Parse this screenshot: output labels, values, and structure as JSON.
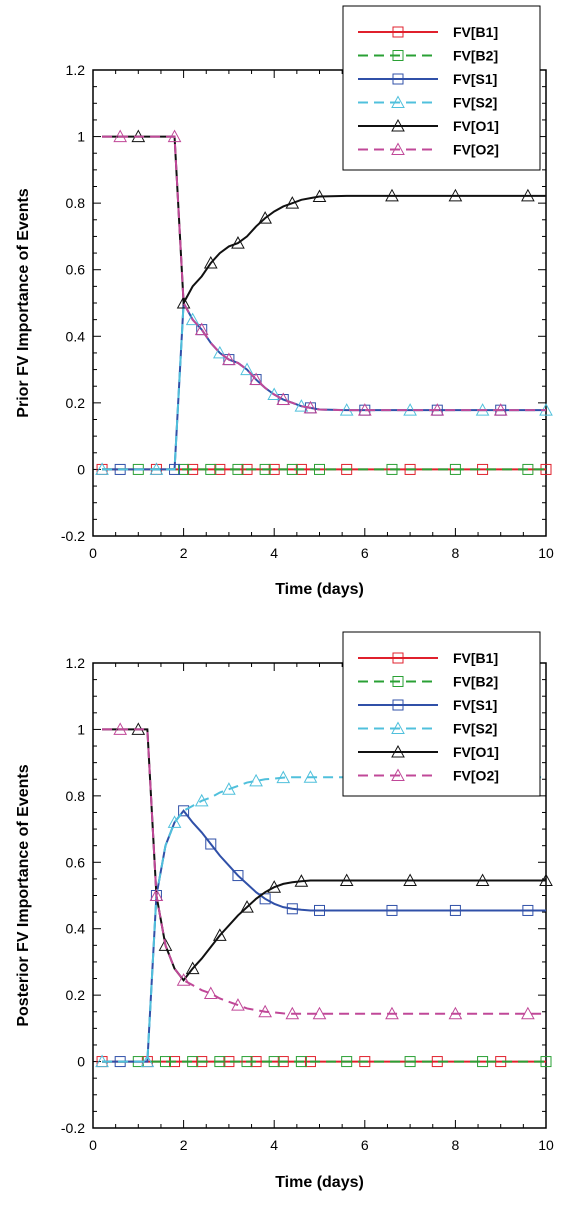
{
  "chart_data": [
    {
      "type": "line",
      "title": "",
      "xlabel": "Time (days)",
      "ylabel": "Prior FV Importance of Events",
      "xlim": [
        0,
        10
      ],
      "ylim": [
        -0.2,
        1.2
      ],
      "xticks": [
        "0",
        "2",
        "4",
        "6",
        "8",
        "10"
      ],
      "yticks": [
        "-0.2",
        "0",
        "0.2",
        "0.4",
        "0.6",
        "0.8",
        "1",
        "1.2"
      ],
      "grid": false,
      "legend_position": "top-right",
      "x": [
        0.2,
        0.6,
        1.0,
        1.4,
        1.8,
        2.0,
        2.2,
        2.4,
        2.6,
        2.8,
        3.0,
        3.2,
        3.4,
        3.6,
        3.8,
        4.0,
        4.2,
        4.4,
        4.6,
        4.8,
        5.0,
        5.6,
        6.0,
        6.6,
        7.0,
        7.6,
        8.0,
        8.6,
        9.0,
        9.6,
        10.0
      ],
      "series": [
        {
          "name": "FV[B1]",
          "color": "#e0202c",
          "dash": "solid",
          "marker": "square",
          "values": [
            0,
            0,
            0,
            0,
            0,
            0,
            0,
            0,
            0,
            0,
            0,
            0,
            0,
            0,
            0,
            0,
            0,
            0,
            0,
            0,
            0,
            0,
            0,
            0,
            0,
            0,
            0,
            0,
            0,
            0,
            0
          ]
        },
        {
          "name": "FV[B2]",
          "color": "#2aa034",
          "dash": "dashed",
          "marker": "square",
          "values": [
            0,
            0,
            0,
            0,
            0,
            0,
            0,
            0,
            0,
            0,
            0,
            0,
            0,
            0,
            0,
            0,
            0,
            0,
            0,
            0,
            0,
            0,
            0,
            0,
            0,
            0,
            0,
            0,
            0,
            0,
            0
          ]
        },
        {
          "name": "FV[S1]",
          "color": "#3050a8",
          "dash": "solid",
          "marker": "square",
          "values": [
            0,
            0,
            0,
            0,
            0,
            0.5,
            0.45,
            0.42,
            0.38,
            0.35,
            0.33,
            0.32,
            0.3,
            0.27,
            0.245,
            0.225,
            0.21,
            0.2,
            0.19,
            0.185,
            0.18,
            0.178,
            0.178,
            0.178,
            0.178,
            0.178,
            0.178,
            0.178,
            0.178,
            0.178,
            0.178
          ]
        },
        {
          "name": "FV[S2]",
          "color": "#50c0dc",
          "dash": "dashed",
          "marker": "triangle",
          "values": [
            0,
            0,
            0,
            0,
            0,
            0.5,
            0.45,
            0.42,
            0.38,
            0.35,
            0.33,
            0.32,
            0.3,
            0.27,
            0.245,
            0.225,
            0.21,
            0.2,
            0.19,
            0.185,
            0.18,
            0.178,
            0.178,
            0.178,
            0.178,
            0.178,
            0.178,
            0.178,
            0.178,
            0.178,
            0.178
          ]
        },
        {
          "name": "FV[O1]",
          "color": "#111111",
          "dash": "solid",
          "marker": "triangle",
          "values": [
            1,
            1,
            1,
            1,
            1,
            0.5,
            0.55,
            0.58,
            0.62,
            0.65,
            0.67,
            0.68,
            0.7,
            0.73,
            0.755,
            0.775,
            0.79,
            0.8,
            0.81,
            0.815,
            0.82,
            0.822,
            0.822,
            0.822,
            0.822,
            0.822,
            0.822,
            0.822,
            0.822,
            0.822,
            0.822
          ]
        },
        {
          "name": "FV[O2]",
          "color": "#c04898",
          "dash": "dashed",
          "marker": "triangle",
          "values": [
            1,
            1,
            1,
            1,
            1,
            0.5,
            0.45,
            0.42,
            0.38,
            0.35,
            0.33,
            0.32,
            0.3,
            0.27,
            0.245,
            0.225,
            0.21,
            0.2,
            0.19,
            0.185,
            0.18,
            0.178,
            0.178,
            0.178,
            0.178,
            0.178,
            0.178,
            0.178,
            0.178,
            0.178,
            0.178
          ]
        }
      ]
    },
    {
      "type": "line",
      "title": "",
      "xlabel": "Time (days)",
      "ylabel": "Posterior FV Importance of Events",
      "xlim": [
        0,
        10
      ],
      "ylim": [
        -0.2,
        1.2
      ],
      "xticks": [
        "0",
        "2",
        "4",
        "6",
        "8",
        "10"
      ],
      "yticks": [
        "-0.2",
        "0",
        "0.2",
        "0.4",
        "0.6",
        "0.8",
        "1",
        "1.2"
      ],
      "grid": false,
      "legend_position": "top-right",
      "x": [
        0.2,
        0.6,
        1.0,
        1.2,
        1.4,
        1.6,
        1.8,
        2.0,
        2.2,
        2.4,
        2.6,
        2.8,
        3.0,
        3.2,
        3.4,
        3.6,
        3.8,
        4.0,
        4.2,
        4.4,
        4.6,
        4.8,
        5.0,
        5.6,
        6.0,
        6.6,
        7.0,
        7.6,
        8.0,
        8.6,
        9.0,
        9.6,
        10.0
      ],
      "series": [
        {
          "name": "FV[B1]",
          "color": "#e0202c",
          "dash": "solid",
          "marker": "square",
          "values": [
            0,
            0,
            0,
            0,
            0,
            0,
            0,
            0,
            0,
            0,
            0,
            0,
            0,
            0,
            0,
            0,
            0,
            0,
            0,
            0,
            0,
            0,
            0,
            0,
            0,
            0,
            0,
            0,
            0,
            0,
            0,
            0,
            0
          ]
        },
        {
          "name": "FV[B2]",
          "color": "#2aa034",
          "dash": "dashed",
          "marker": "square",
          "values": [
            0,
            0,
            0,
            0,
            0,
            0,
            0,
            0,
            0,
            0,
            0,
            0,
            0,
            0,
            0,
            0,
            0,
            0,
            0,
            0,
            0,
            0,
            0,
            0,
            0,
            0,
            0,
            0,
            0,
            0,
            0,
            0,
            0
          ]
        },
        {
          "name": "FV[S1]",
          "color": "#3050a8",
          "dash": "solid",
          "marker": "square",
          "values": [
            0,
            0,
            0,
            0,
            0.5,
            0.65,
            0.72,
            0.755,
            0.72,
            0.69,
            0.655,
            0.62,
            0.59,
            0.56,
            0.535,
            0.51,
            0.49,
            0.475,
            0.465,
            0.46,
            0.457,
            0.455,
            0.455,
            0.455,
            0.455,
            0.455,
            0.455,
            0.455,
            0.455,
            0.455,
            0.455,
            0.455,
            0.455
          ]
        },
        {
          "name": "FV[S2]",
          "color": "#50c0dc",
          "dash": "dashed",
          "marker": "triangle",
          "values": [
            0,
            0,
            0,
            0,
            0.5,
            0.65,
            0.72,
            0.755,
            0.77,
            0.785,
            0.795,
            0.81,
            0.82,
            0.83,
            0.84,
            0.845,
            0.85,
            0.852,
            0.855,
            0.856,
            0.856,
            0.856,
            0.856,
            0.856,
            0.856,
            0.856,
            0.856,
            0.856,
            0.856,
            0.856,
            0.856,
            0.856,
            0.856
          ]
        },
        {
          "name": "FV[O1]",
          "color": "#111111",
          "dash": "solid",
          "marker": "triangle",
          "values": [
            1,
            1,
            1,
            1,
            0.5,
            0.35,
            0.28,
            0.245,
            0.28,
            0.31,
            0.345,
            0.38,
            0.41,
            0.44,
            0.465,
            0.49,
            0.51,
            0.525,
            0.535,
            0.54,
            0.543,
            0.545,
            0.545,
            0.545,
            0.545,
            0.545,
            0.545,
            0.545,
            0.545,
            0.545,
            0.545,
            0.545,
            0.545
          ]
        },
        {
          "name": "FV[O2]",
          "color": "#c04898",
          "dash": "dashed",
          "marker": "triangle",
          "values": [
            1,
            1,
            1,
            1,
            0.5,
            0.35,
            0.28,
            0.245,
            0.23,
            0.215,
            0.205,
            0.19,
            0.18,
            0.17,
            0.16,
            0.155,
            0.15,
            0.148,
            0.145,
            0.144,
            0.144,
            0.144,
            0.144,
            0.144,
            0.144,
            0.144,
            0.144,
            0.144,
            0.144,
            0.144,
            0.144,
            0.144,
            0.144
          ]
        }
      ]
    }
  ]
}
